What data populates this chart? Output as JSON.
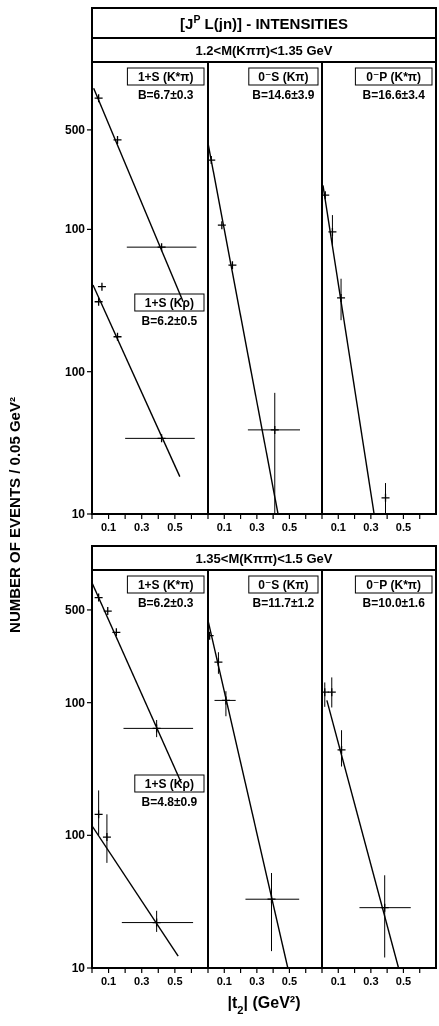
{
  "chart_data": [
    {
      "type": "scatter",
      "title": "[J$^{P}$ L(jn)] - INTENSITIES",
      "ylabel": "NUMBER OF EVENTS / 0.05 GeV²",
      "log": true,
      "xlim": [
        0,
        0.7
      ],
      "xticks": [
        {
          "value": 0,
          "label": null
        },
        0.1,
        {
          "value": 0.2,
          "label": null
        },
        0.3,
        {
          "value": 0.4,
          "label": null
        },
        0.5,
        {
          "value": 0.6,
          "label": null
        }
      ],
      "ylim": [
        1,
        1500
      ],
      "yticks": [
        500,
        100
      ],
      "annotations": [
        "B=6.7±0.3"
      ],
      "series": [
        {
          "name": "1+S (K*π)",
          "marker": "cross",
          "color": "#000000",
          "x": [
            0.04,
            0.154,
            0.42
          ],
          "values": [
            836,
            425,
            75
          ],
          "xerrors": [
            null,
            null,
            [
              0.21,
              0.63
            ]
          ]
        },
        {
          "type": "line",
          "color": "#000000",
          "x": [
            0.01,
            0.55
          ],
          "values": [
            980,
            31
          ]
        }
      ]
    },
    {
      "type": "scatter",
      "log": true,
      "tick_labels": "y",
      "xlim": [
        0,
        0.7
      ],
      "ylim": [
        10,
        15000
      ],
      "yticks": [
        100,
        10
      ],
      "annotations": [
        "B=6.2±0.5"
      ],
      "series": [
        {
          "name": "1+S (Kρ)",
          "marker": "cross",
          "color": "#000000",
          "x": [
            0.04,
            0.06,
            0.154,
            0.42
          ],
          "values": [
            310,
            396,
            176,
            34
          ],
          "xerrors": [
            null,
            null,
            null,
            [
              0.2,
              0.62
            ]
          ]
        },
        {
          "type": "line",
          "color": "#000000",
          "x": [
            0.006,
            0.53
          ],
          "values": [
            406,
            18.3
          ]
        }
      ]
    },
    {
      "type": "scatter",
      "subtitle": "1.2<M(Kππ)<1.35 GeV",
      "log": true,
      "tick_labels": "x",
      "xlim": [
        0,
        0.7
      ],
      "xticks": [
        {
          "value": 0,
          "label": null
        },
        0.1,
        {
          "value": 0.2,
          "label": null
        },
        0.3,
        {
          "value": 0.4,
          "label": null
        },
        0.5,
        {
          "value": 0.6,
          "label": null
        }
      ],
      "ylim": [
        1,
        1500
      ],
      "annotations": [
        "B=14.6±3.9"
      ],
      "series": [
        {
          "name": "0⁻S (Kπ)",
          "marker": "cross",
          "color": "#000000",
          "x": [
            0.02,
            0.085,
            0.15,
            0.41
          ],
          "values": [
            307,
            107,
            56,
            3.9
          ],
          "xerrors": [
            null,
            null,
            null,
            [
              0.245,
              0.565
            ]
          ],
          "errors": [
            null,
            null,
            null,
            [
              1,
              7.1
            ]
          ]
        },
        {
          "type": "line",
          "color": "#000000",
          "x": [
            0,
            0.43
          ],
          "values": [
            403,
            1
          ]
        }
      ]
    },
    {
      "type": "scatter",
      "log": true,
      "tick_labels": "x",
      "xlim": [
        0,
        0.7
      ],
      "xticks": [
        {
          "value": 0,
          "label": null
        },
        0.1,
        {
          "value": 0.2,
          "label": null
        },
        0.3,
        {
          "value": 0.4,
          "label": null
        },
        0.5,
        {
          "value": 0.6,
          "label": null
        }
      ],
      "ylim": [
        1,
        1500
      ],
      "annotations": [
        "B=16.6±3.4"
      ],
      "series": [
        {
          "name": "0⁻P (K*π)",
          "marker": "cross",
          "color": "#000000",
          "x": [
            0.02,
            0.064,
            0.117,
            0.39
          ],
          "values": [
            174,
            96,
            33,
            1.3
          ],
          "errors": [
            null,
            [
              77,
              126
            ],
            [
              23,
              45
            ],
            [
              1,
              1.65
            ]
          ]
        },
        {
          "type": "line",
          "color": "#000000",
          "x": [
            0.006,
            0.32
          ],
          "values": [
            204,
            1
          ]
        }
      ]
    },
    {
      "type": "scatter",
      "log": true,
      "xlim": [
        0,
        0.7
      ],
      "xticks": [
        {
          "value": 0,
          "label": null
        },
        0.1,
        {
          "value": 0.2,
          "label": null
        },
        0.3,
        {
          "value": 0.4,
          "label": null
        },
        0.5,
        {
          "value": 0.6,
          "label": null
        }
      ],
      "ylim": [
        1,
        1000
      ],
      "yticks": [
        500,
        100
      ],
      "annotations": [
        "B=6.2±0.3"
      ],
      "series": [
        {
          "name": "1+S (K*π)",
          "marker": "cross",
          "color": "#000000",
          "x": [
            0.04,
            0.095,
            0.147,
            0.39
          ],
          "values": [
            620,
            490,
            339,
            64
          ],
          "xerrors": [
            null,
            null,
            null,
            [
              0.19,
              0.61
            ]
          ],
          "errors": [
            null,
            null,
            null,
            [
              55,
              74
            ]
          ]
        },
        {
          "type": "line",
          "color": "#000000",
          "x": [
            0,
            0.54
          ],
          "values": [
            800,
            24.7
          ]
        }
      ]
    },
    {
      "type": "scatter",
      "log": true,
      "tick_labels": "y",
      "xlim": [
        0,
        0.7
      ],
      "ylim": [
        10,
        10000
      ],
      "yticks": [
        100,
        10
      ],
      "annotations": [
        "B=4.8±0.9"
      ],
      "series": [
        {
          "name": "1+S (Kρ)",
          "marker": "cross",
          "color": "#000000",
          "x": [
            0.04,
            0.09,
            0.39
          ],
          "values": [
            144,
            97,
            22
          ],
          "xerrors": [
            null,
            null,
            [
              0.18,
              0.61
            ]
          ],
          "errors": [
            [
              100,
              218
            ],
            [
              62,
              144
            ],
            [
              18.7,
              27
            ]
          ]
        },
        {
          "type": "line",
          "color": "#000000",
          "x": [
            0,
            0.52
          ],
          "values": [
            118,
            12.3
          ]
        }
      ]
    },
    {
      "type": "scatter",
      "subtitle": "1.35<M(Kππ)<1.5 GeV",
      "xlabel": "|t$_{2}$| (GeV²)",
      "log": true,
      "tick_labels": "x",
      "xlim": [
        0,
        0.7
      ],
      "xticks": [
        {
          "value": 0,
          "label": null
        },
        0.1,
        {
          "value": 0.2,
          "label": null
        },
        0.3,
        {
          "value": 0.4,
          "label": null
        },
        0.5,
        {
          "value": 0.6,
          "label": null
        }
      ],
      "ylim": [
        1,
        1000
      ],
      "annotations": [
        "B=11.7±1.2"
      ],
      "series": [
        {
          "name": "0⁻S (Kπ)",
          "marker": "cross",
          "color": "#000000",
          "x": [
            0.01,
            0.064,
            0.11,
            0.39
          ],
          "values": [
            320,
            202,
            104,
            3.3
          ],
          "xerrors": [
            null,
            null,
            [
              0.04,
              0.17
            ],
            [
              0.23,
              0.56
            ]
          ],
          "errors": [
            null,
            [
              165,
              240
            ],
            [
              79,
              122
            ],
            [
              1.34,
              5.2
            ]
          ]
        },
        {
          "type": "line",
          "color": "#000000",
          "x": [
            0,
            0.49
          ],
          "values": [
            417,
            1
          ]
        }
      ]
    },
    {
      "type": "scatter",
      "log": true,
      "tick_labels": "x",
      "xlim": [
        0,
        0.7
      ],
      "xticks": [
        {
          "value": 0,
          "label": null
        },
        0.1,
        {
          "value": 0.2,
          "label": null
        },
        0.3,
        {
          "value": 0.4,
          "label": null
        },
        0.5,
        {
          "value": 0.6,
          "label": null
        }
      ],
      "ylim": [
        1,
        1000
      ],
      "annotations": [
        "B=10.0±1.6"
      ],
      "series": [
        {
          "name": "0⁻P (K*π)",
          "marker": "cross",
          "color": "#000000",
          "x": [
            0.017,
            0.06,
            0.12,
            0.385
          ],
          "values": [
            120,
            120,
            44,
            2.85
          ],
          "xerrors": [
            null,
            null,
            null,
            [
              0.23,
              0.545
            ]
          ],
          "errors": [
            [
              93,
              142
            ],
            [
              92,
              155
            ],
            [
              33,
              62
            ],
            [
              1.2,
              5.0
            ]
          ]
        },
        {
          "type": "line",
          "color": "#000000",
          "x": [
            0.03,
            0.47
          ],
          "values": [
            104,
            1
          ]
        }
      ]
    }
  ]
}
